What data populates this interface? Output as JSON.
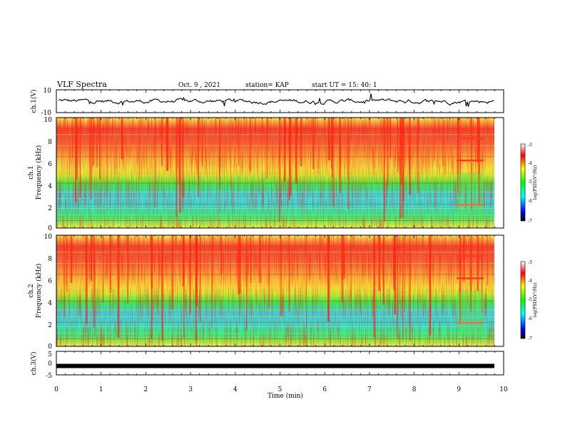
{
  "header": {
    "title": "VLF Spectra",
    "date": "Oct. 9 , 2021",
    "station": "station= KAP",
    "start": "start UT = 15: 40: 1"
  },
  "chart_data": [
    {
      "type": "line",
      "panel": "ch1-waveform",
      "ylabel": "ch.1(V)",
      "yticks": [
        "10",
        "-10"
      ],
      "ylim": [
        -10,
        10
      ],
      "xlim": [
        0,
        10
      ],
      "description_values": "noisy voltage trace oscillating roughly between -6 and +8 V"
    },
    {
      "type": "heatmap",
      "panel": "ch1-spectrogram",
      "ylabel_top": "ch.1",
      "ylabel": "Frequency (kHz)",
      "yticks": [
        "0",
        "2",
        "4",
        "6",
        "8",
        "10"
      ],
      "ylim": [
        0,
        10
      ],
      "xlim": [
        0,
        10
      ],
      "colorbar": {
        "ticks": [
          "-3",
          "-4",
          "-5",
          "-6",
          "-7"
        ],
        "label": "log(PSD)(V²/Hz)",
        "range": [
          -7,
          -3
        ]
      }
    },
    {
      "type": "heatmap",
      "panel": "ch2-spectrogram",
      "ylabel_top": "ch.2",
      "ylabel": "Frequency (kHz)",
      "yticks": [
        "0",
        "2",
        "4",
        "6",
        "8",
        "10"
      ],
      "ylim": [
        0,
        10
      ],
      "xlim": [
        0,
        10
      ],
      "colorbar": {
        "ticks": [
          "-3",
          "-4",
          "-5",
          "-6",
          "-7"
        ],
        "label": "log(PSD)(V²/Hz)",
        "range": [
          -7,
          -3
        ]
      }
    },
    {
      "type": "line",
      "panel": "ch3-waveform",
      "ylabel": "ch.3(V)",
      "yticks": [
        "5",
        "0",
        "-5"
      ],
      "ylim": [
        -5,
        5
      ],
      "xlim": [
        0,
        10
      ],
      "level": -1.2
    }
  ],
  "xaxis": {
    "label": "Time (min)",
    "ticks": [
      "0",
      "1",
      "2",
      "3",
      "4",
      "5",
      "6",
      "7",
      "8",
      "9",
      "10"
    ]
  },
  "colors": {
    "frame": "#000000",
    "colormap": [
      "#000000",
      "#0000ff",
      "#00ffff",
      "#00ff00",
      "#ffff00",
      "#ff0000",
      "#ffffff"
    ]
  }
}
